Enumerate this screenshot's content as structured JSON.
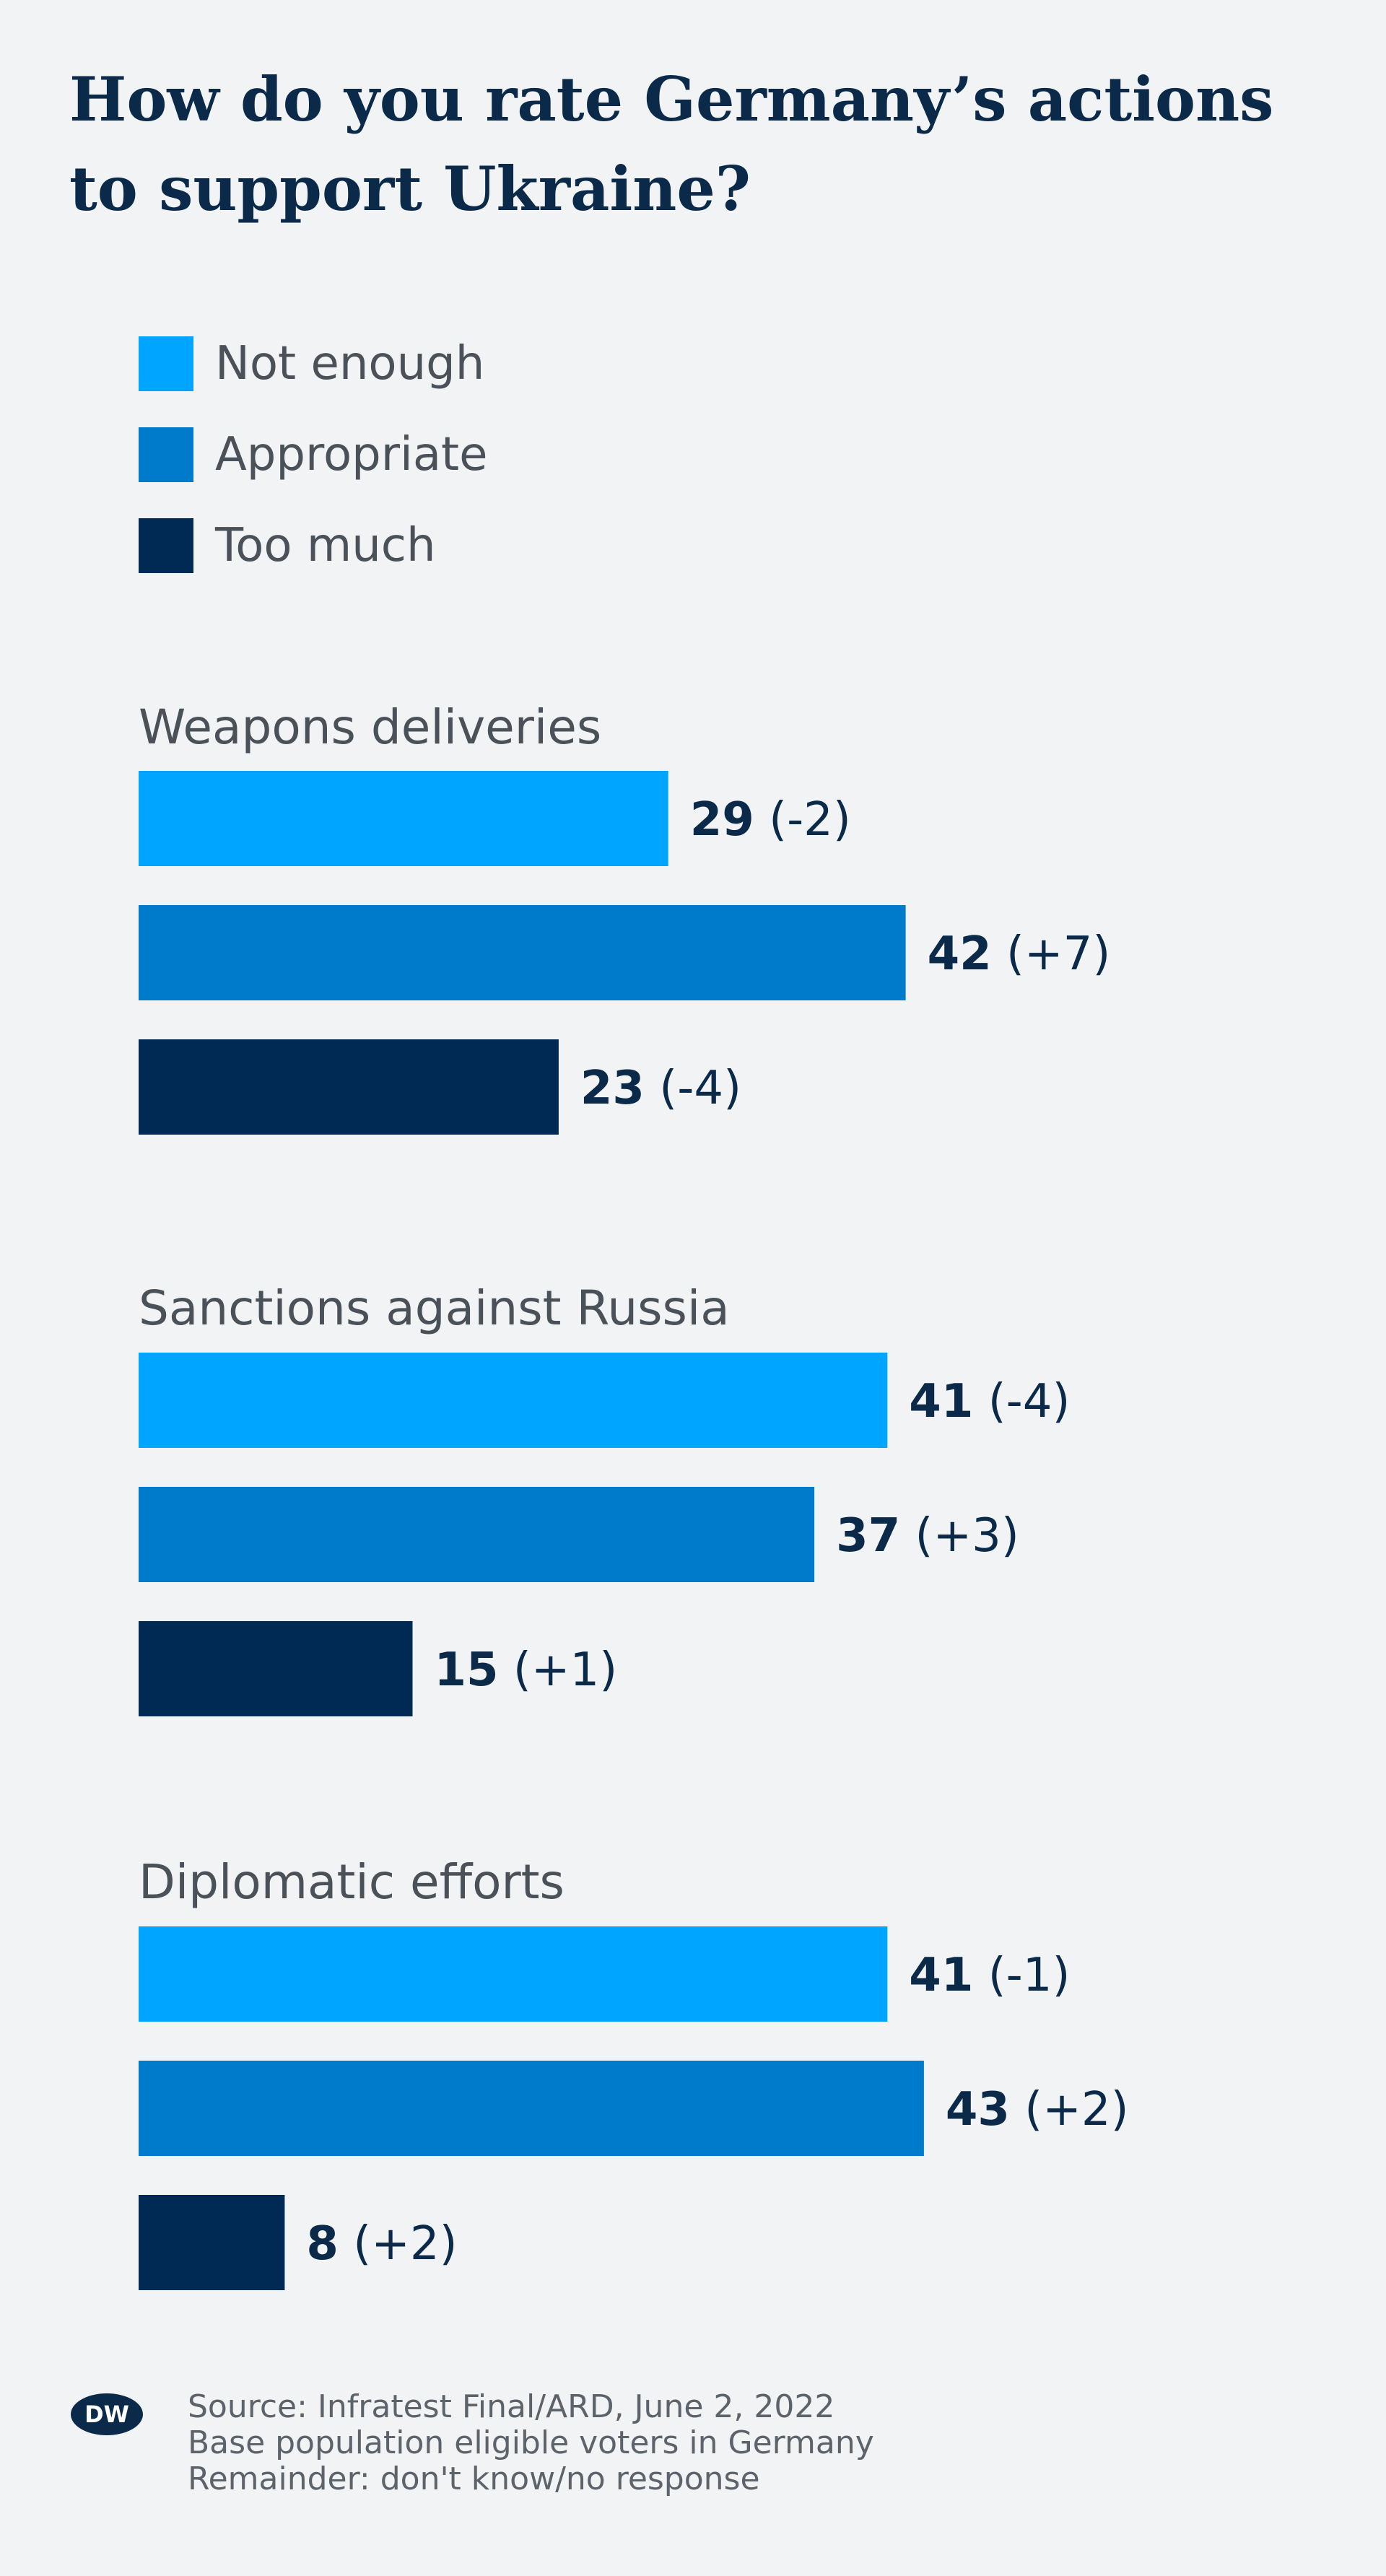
{
  "colors": {
    "not_enough": "#00a5ff",
    "appropriate": "#007bcb",
    "too_much": "#002a54",
    "value_text": "#0b2a4a",
    "group_label": "#4a5159"
  },
  "chart_data": {
    "type": "bar",
    "orientation": "horizontal",
    "title": "How do you rate Germany’s actions to support Ukraine?",
    "legend": [
      "Not enough",
      "Appropriate",
      "Too much"
    ],
    "groups": [
      {
        "label": "Weapons deliveries",
        "bars": [
          {
            "series": "Not enough",
            "value": 29,
            "change": "(-2)"
          },
          {
            "series": "Appropriate",
            "value": 42,
            "change": "(+7)"
          },
          {
            "series": "Too much",
            "value": 23,
            "change": "(-4)"
          }
        ]
      },
      {
        "label": "Sanctions against Russia",
        "bars": [
          {
            "series": "Not enough",
            "value": 41,
            "change": "(-4)"
          },
          {
            "series": "Appropriate",
            "value": 37,
            "change": "(+3)"
          },
          {
            "series": "Too much",
            "value": 15,
            "change": "(+1)"
          }
        ]
      },
      {
        "label": "Diplomatic efforts",
        "bars": [
          {
            "series": "Not enough",
            "value": 41,
            "change": "(-1)"
          },
          {
            "series": "Appropriate",
            "value": 43,
            "change": "(+2)"
          },
          {
            "series": "Too much",
            "value": 8,
            "change": "(+2)"
          }
        ]
      }
    ]
  },
  "footer": {
    "logo_text": "DW",
    "source_lines": [
      "Source: Infratest Final/ARD, June 2, 2022",
      "Base population eligible voters in Germany",
      "Remainder: don't know/no response"
    ]
  }
}
